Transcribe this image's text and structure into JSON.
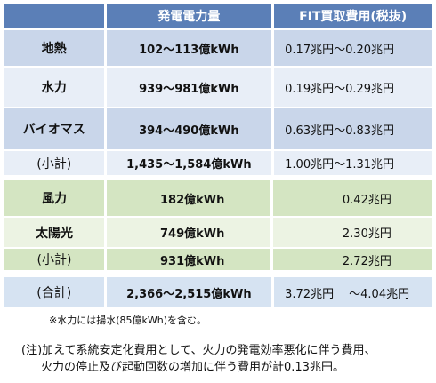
{
  "table": {
    "header": {
      "col1": "",
      "col2": "発電電力量",
      "col3": "FIT買取費用(税抜)"
    },
    "group1": [
      {
        "label": "地熱",
        "energy": "102〜113億kWh",
        "cost": "0.17兆円〜0.20兆円"
      },
      {
        "label": "水力",
        "energy": "939〜981億kWh",
        "cost": "0.19兆円〜0.29兆円"
      },
      {
        "label": "バイオマス",
        "energy": "394〜490億kWh",
        "cost": "0.63兆円〜0.83兆円"
      },
      {
        "label": "(小計)",
        "energy": "1,435〜1,584億kWh",
        "cost": "1.00兆円〜1.31兆円"
      }
    ],
    "group2": [
      {
        "label": "風力",
        "energy": "182億kWh",
        "cost": "0.42兆円"
      },
      {
        "label": "太陽光",
        "energy": "749億kWh",
        "cost": "2.30兆円"
      },
      {
        "label": "(小計)",
        "energy": "931億kWh",
        "cost": "2.72兆円"
      }
    ],
    "total": {
      "label": "(合計)",
      "energy": "2,366〜2,515億kWh",
      "cost_a": "3.72兆円",
      "cost_b": "〜4.04兆円"
    }
  },
  "notes": {
    "hydro_note": "※水力には揚水(85億kWh)を含む。",
    "note_line1": "(注)加えて系統安定化費用として、火力の発電効率悪化に伴う費用、",
    "note_line2": "火力の停止及び起動回数の増加に伴う費用が計0.13兆円。"
  },
  "colors": {
    "header_blue": "#5b7fb7",
    "blue_row": "#c9d6ea",
    "green_row": "#d4e5c2"
  }
}
